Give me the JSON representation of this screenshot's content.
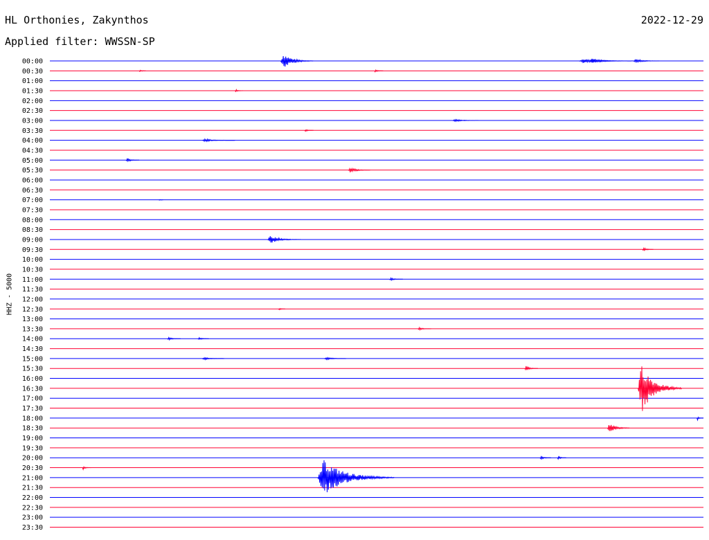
{
  "header": {
    "station": "HL Orthonies, Zakynthos",
    "filter": "Applied filter: WWSSN-SP",
    "date": "2022-12-29"
  },
  "chart_data": {
    "type": "line",
    "title": "HL Orthonies, Zakynthos",
    "subtitle": "Applied filter: WWSSN-SP",
    "ylabel": "HHZ - 5000",
    "xlabel": "",
    "grid": false,
    "trace_colors": [
      "#0000ff",
      "#ff0033"
    ],
    "categories": [
      "00:00",
      "00:30",
      "01:00",
      "01:30",
      "02:00",
      "02:30",
      "03:00",
      "03:30",
      "04:00",
      "04:30",
      "05:00",
      "05:30",
      "06:00",
      "06:30",
      "07:00",
      "07:30",
      "08:00",
      "08:30",
      "09:00",
      "09:30",
      "10:00",
      "10:30",
      "11:00",
      "11:30",
      "12:00",
      "12:30",
      "13:00",
      "13:30",
      "14:00",
      "14:30",
      "15:00",
      "15:30",
      "16:00",
      "16:30",
      "17:00",
      "17:30",
      "18:00",
      "18:30",
      "19:00",
      "19:30",
      "20:00",
      "20:30",
      "21:00",
      "21:30",
      "22:00",
      "22:30",
      "23:00",
      "23:30"
    ],
    "events": [
      {
        "row": 0,
        "minute": 10.6,
        "amp": 11,
        "dur": 1.5
      },
      {
        "row": 0,
        "minute": 24.3,
        "amp": 3,
        "dur": 2.5
      },
      {
        "row": 0,
        "minute": 24.8,
        "amp": 4,
        "dur": 1.5
      },
      {
        "row": 0,
        "minute": 26.8,
        "amp": 3,
        "dur": 1.2
      },
      {
        "row": 1,
        "minute": 4.1,
        "amp": 2,
        "dur": 0.3
      },
      {
        "row": 1,
        "minute": 14.9,
        "amp": 2,
        "dur": 0.4
      },
      {
        "row": 3,
        "minute": 8.5,
        "amp": 2,
        "dur": 0.4
      },
      {
        "row": 6,
        "minute": 18.5,
        "amp": 2,
        "dur": 1.2
      },
      {
        "row": 7,
        "minute": 11.7,
        "amp": 2,
        "dur": 0.4
      },
      {
        "row": 8,
        "minute": 7.0,
        "amp": 2,
        "dur": 1.5
      },
      {
        "row": 10,
        "minute": 3.5,
        "amp": 3,
        "dur": 0.6
      },
      {
        "row": 11,
        "minute": 13.7,
        "amp": 4,
        "dur": 1.0
      },
      {
        "row": 14,
        "minute": 5.0,
        "amp": 1,
        "dur": 0.2
      },
      {
        "row": 18,
        "minute": 10.0,
        "amp": 6,
        "dur": 1.5
      },
      {
        "row": 19,
        "minute": 27.2,
        "amp": 3,
        "dur": 0.5
      },
      {
        "row": 22,
        "minute": 15.6,
        "amp": 2,
        "dur": 0.6
      },
      {
        "row": 25,
        "minute": 10.5,
        "amp": 2,
        "dur": 0.3
      },
      {
        "row": 27,
        "minute": 16.9,
        "amp": 2,
        "dur": 0.6
      },
      {
        "row": 28,
        "minute": 5.4,
        "amp": 2,
        "dur": 0.6
      },
      {
        "row": 28,
        "minute": 6.8,
        "amp": 2,
        "dur": 0.5
      },
      {
        "row": 30,
        "minute": 7.0,
        "amp": 2,
        "dur": 1.0
      },
      {
        "row": 30,
        "minute": 12.6,
        "amp": 2,
        "dur": 1.0
      },
      {
        "row": 31,
        "minute": 21.8,
        "amp": 4,
        "dur": 0.6
      },
      {
        "row": 33,
        "minute": 27.0,
        "amp": 36,
        "dur": 2.0
      },
      {
        "row": 37,
        "minute": 25.6,
        "amp": 8,
        "dur": 1.0
      },
      {
        "row": 40,
        "minute": 22.5,
        "amp": 3,
        "dur": 0.5
      },
      {
        "row": 40,
        "minute": 23.3,
        "amp": 3,
        "dur": 0.4
      },
      {
        "row": 41,
        "minute": 1.5,
        "amp": 3,
        "dur": 0.4
      },
      {
        "row": 42,
        "minute": 12.3,
        "amp": 26,
        "dur": 3.5
      },
      {
        "row": 36,
        "minute": 29.7,
        "amp": 3,
        "dur": 0.4
      }
    ]
  }
}
